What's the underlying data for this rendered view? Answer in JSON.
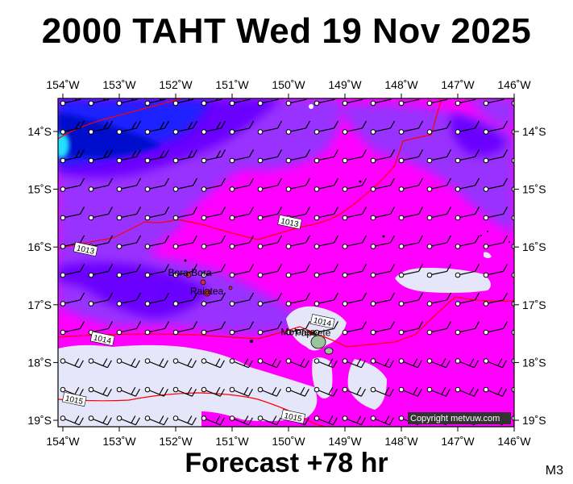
{
  "title": "2000 TAHT Wed 19 Nov 2025",
  "footer": "Forecast +78 hr",
  "model_tag": "M3",
  "copyright": "Copyright metvuw.com",
  "lon_labels": [
    "154˚W",
    "153˚W",
    "152˚W",
    "151˚W",
    "150˚W",
    "149˚W",
    "148˚W",
    "147˚W",
    "146˚W"
  ],
  "lat_labels": [
    "14˚S",
    "15˚S",
    "16˚S",
    "17˚S",
    "18˚S",
    "19˚S"
  ],
  "places": [
    {
      "name": "Bora Bora",
      "lon": -151.75,
      "lat": -16.5
    },
    {
      "name": "Raiatea",
      "lon": -151.45,
      "lat": -16.82
    },
    {
      "name": "Mo'orea",
      "lon": -149.83,
      "lat": -17.53
    },
    {
      "name": "Papeete",
      "lon": -149.57,
      "lat": -17.54
    }
  ],
  "isobars": [
    {
      "label": "1013",
      "lon": -153.6,
      "lat": -16.05
    },
    {
      "label": "1013",
      "lon": -149.98,
      "lat": -15.58
    },
    {
      "label": "1014",
      "lon": -153.3,
      "lat": -17.6
    },
    {
      "label": "1014",
      "lon": -149.4,
      "lat": -17.3
    },
    {
      "label": "1015",
      "lon": -153.8,
      "lat": -18.65
    },
    {
      "label": "1015",
      "lon": -149.92,
      "lat": -18.95
    }
  ],
  "colors": {
    "background_magenta": "#ff00ff",
    "purple": "#9933ff",
    "blue_purple": "#6a00ff",
    "blue": "#1a22ff",
    "deep_blue": "#0011cc",
    "cyan": "#22e0ff",
    "lavender": "#e6e6fa",
    "isobar": "#ff0000"
  }
}
